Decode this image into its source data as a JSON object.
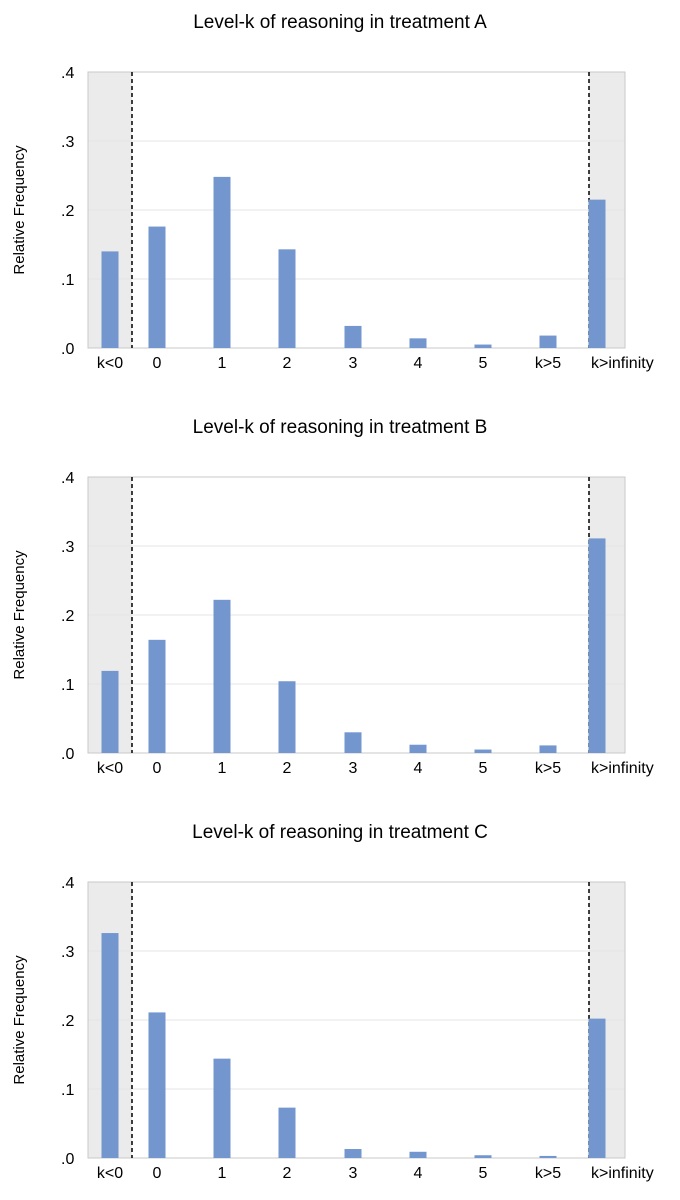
{
  "chart_data": [
    {
      "type": "bar",
      "title": "Level-k of reasoning in treatment A",
      "xlabel": "",
      "ylabel": "Relative Frequency",
      "categories": [
        "k<0",
        "0",
        "1",
        "2",
        "3",
        "4",
        "5",
        "k>5",
        "k>infinity"
      ],
      "values": [
        0.14,
        0.176,
        0.248,
        0.143,
        0.032,
        0.014,
        0.005,
        0.018,
        0.215
      ],
      "ylim": [
        0,
        0.4
      ],
      "y_ticks": [
        ".0",
        ".1",
        ".2",
        ".3",
        ".4"
      ],
      "grid": true,
      "bar_color": "#7396CF",
      "shade_color": "#EBEBEB"
    },
    {
      "type": "bar",
      "title": "Level-k of reasoning in treatment B",
      "xlabel": "",
      "ylabel": "Relative Frequency",
      "categories": [
        "k<0",
        "0",
        "1",
        "2",
        "3",
        "4",
        "5",
        "k>5",
        "k>infinity"
      ],
      "values": [
        0.119,
        0.164,
        0.222,
        0.104,
        0.03,
        0.012,
        0.005,
        0.011,
        0.311
      ],
      "ylim": [
        0,
        0.4
      ],
      "y_ticks": [
        ".0",
        ".1",
        ".2",
        ".3",
        ".4"
      ],
      "grid": true,
      "bar_color": "#7396CF",
      "shade_color": "#EBEBEB"
    },
    {
      "type": "bar",
      "title": "Level-k of reasoning in treatment C",
      "xlabel": "",
      "ylabel": "Relative Frequency",
      "categories": [
        "k<0",
        "0",
        "1",
        "2",
        "3",
        "4",
        "5",
        "k>5",
        "k>infinity"
      ],
      "values": [
        0.326,
        0.211,
        0.144,
        0.073,
        0.013,
        0.009,
        0.004,
        0.003,
        0.202
      ],
      "ylim": [
        0,
        0.4
      ],
      "y_ticks": [
        ".0",
        ".1",
        ".2",
        ".3",
        ".4"
      ],
      "grid": true,
      "bar_color": "#7396CF",
      "shade_color": "#EBEBEB"
    }
  ]
}
